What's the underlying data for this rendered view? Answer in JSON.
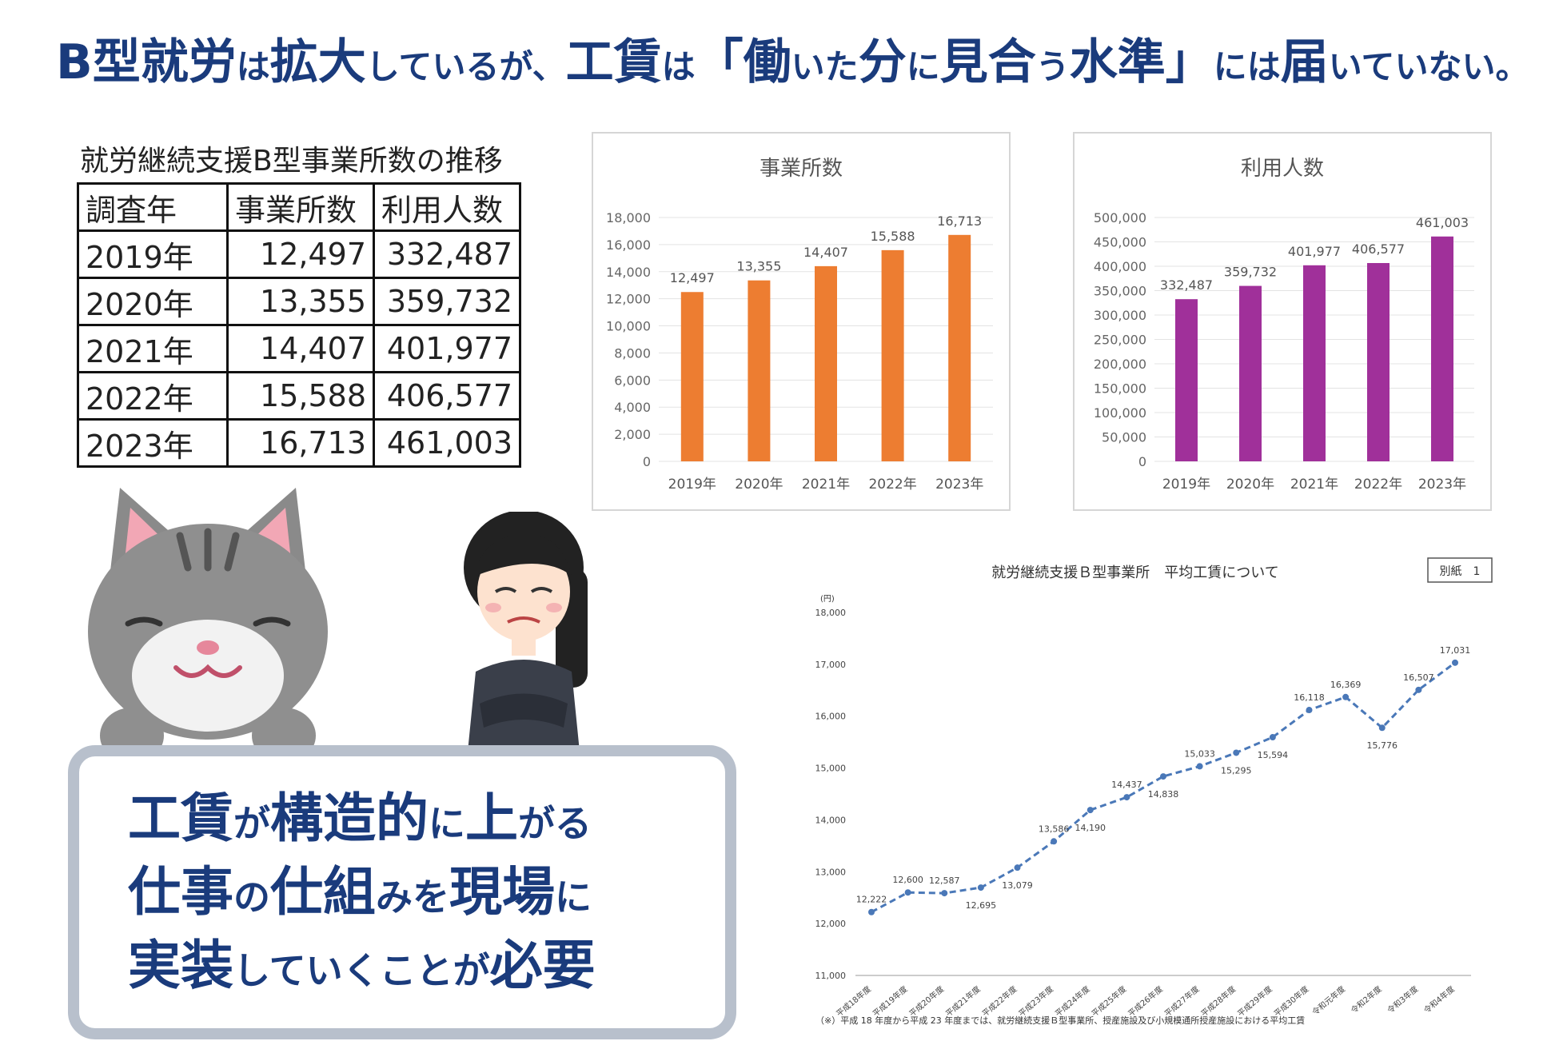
{
  "headline": [
    {
      "t": "B型就労",
      "s": "big"
    },
    {
      "t": "は",
      "s": "small"
    },
    {
      "t": "拡大",
      "s": "big"
    },
    {
      "t": "しているが、",
      "s": "small"
    },
    {
      "t": "工賃",
      "s": "big"
    },
    {
      "t": "は",
      "s": "small"
    },
    {
      "t": "「働",
      "s": "big"
    },
    {
      "t": "いた",
      "s": "small"
    },
    {
      "t": "分",
      "s": "big"
    },
    {
      "t": "に",
      "s": "small"
    },
    {
      "t": "見合",
      "s": "big"
    },
    {
      "t": "う",
      "s": "small"
    },
    {
      "t": "水準」",
      "s": "big"
    },
    {
      "t": "には",
      "s": "small"
    },
    {
      "t": "届",
      "s": "big"
    },
    {
      "t": "いていない。",
      "s": "small"
    }
  ],
  "table": {
    "caption": "就労継続支援B型事業所数の推移",
    "headers": [
      "調査年",
      "事業所数",
      "利用人数"
    ],
    "rows": [
      [
        "2019年",
        "12,497",
        "332,487"
      ],
      [
        "2020年",
        "13,355",
        "359,732"
      ],
      [
        "2021年",
        "14,407",
        "401,977"
      ],
      [
        "2022年",
        "15,588",
        "406,577"
      ],
      [
        "2023年",
        "16,713",
        "461,003"
      ]
    ]
  },
  "message": [
    [
      {
        "t": "工賃",
        "s": "big"
      },
      {
        "t": "が",
        "s": "small"
      },
      {
        "t": "構造的",
        "s": "big"
      },
      {
        "t": "に",
        "s": "small"
      },
      {
        "t": "上",
        "s": "big"
      },
      {
        "t": "がる",
        "s": "small"
      }
    ],
    [
      {
        "t": "仕事",
        "s": "big"
      },
      {
        "t": "の",
        "s": "small"
      },
      {
        "t": "仕組",
        "s": "big"
      },
      {
        "t": "みを",
        "s": "small"
      },
      {
        "t": "現場",
        "s": "big"
      },
      {
        "t": "に",
        "s": "small"
      }
    ],
    [
      {
        "t": "実装",
        "s": "big"
      },
      {
        "t": "していくことが",
        "s": "small"
      },
      {
        "t": "必要",
        "s": "big"
      }
    ]
  ],
  "chart_data": [
    {
      "type": "bar",
      "title": "事業所数",
      "categories": [
        "2019年",
        "2020年",
        "2021年",
        "2022年",
        "2023年"
      ],
      "values": [
        12497,
        13355,
        14407,
        15588,
        16713
      ],
      "value_labels": [
        "12,497",
        "13,355",
        "14,407",
        "15,588",
        "16,713"
      ],
      "ylim": [
        0,
        18000
      ],
      "yticks": [
        "0",
        "2,000",
        "4,000",
        "6,000",
        "8,000",
        "10,000",
        "12,000",
        "14,000",
        "16,000",
        "18,000"
      ],
      "color": "#ed7d31",
      "grid": true
    },
    {
      "type": "bar",
      "title": "利用人数",
      "categories": [
        "2019年",
        "2020年",
        "2021年",
        "2022年",
        "2023年"
      ],
      "values": [
        332487,
        359732,
        401977,
        406577,
        461003
      ],
      "value_labels": [
        "332,487",
        "359,732",
        "401,977",
        "406,577",
        "461,003"
      ],
      "ylim": [
        0,
        500000
      ],
      "yticks": [
        "0",
        "50,000",
        "100,000",
        "150,000",
        "200,000",
        "250,000",
        "300,000",
        "350,000",
        "400,000",
        "450,000",
        "500,000"
      ],
      "color": "#a0309a",
      "grid": true
    },
    {
      "type": "line",
      "title": "就労継続支援Ｂ型事業所　平均工賃について",
      "badge": "別紙　1",
      "unit": "(円)",
      "categories": [
        "平成18年度",
        "平成19年度",
        "平成20年度",
        "平成21年度",
        "平成22年度",
        "平成23年度",
        "平成24年度",
        "平成25年度",
        "平成26年度",
        "平成27年度",
        "平成28年度",
        "平成29年度",
        "平成30年度",
        "令和元年度",
        "令和2年度",
        "令和3年度",
        "令和4年度"
      ],
      "values": [
        12222,
        12600,
        12587,
        12695,
        13079,
        13586,
        14190,
        14437,
        14838,
        15033,
        15295,
        15594,
        16118,
        16369,
        15776,
        16507,
        17031
      ],
      "value_labels": [
        "12,222",
        "12,600",
        "12,587",
        "12,695",
        "13,079",
        "13,586",
        "14,190",
        "14,437",
        "14,838",
        "15,033",
        "15,295",
        "15,594",
        "16,118",
        "16,369",
        "15,776",
        "16,507",
        "17,031"
      ],
      "ylim": [
        11000,
        18000
      ],
      "yticks": [
        "11,000",
        "12,000",
        "13,000",
        "14,000",
        "15,000",
        "16,000",
        "17,000",
        "18,000"
      ],
      "line_style": "dashed",
      "color": "#4a78b8",
      "footnote": "（※）平成 18 年度から平成 23 年度までは、就労継続支援Ｂ型事業所、授産施設及び小規模通所授産施設における平均工賃"
    }
  ]
}
